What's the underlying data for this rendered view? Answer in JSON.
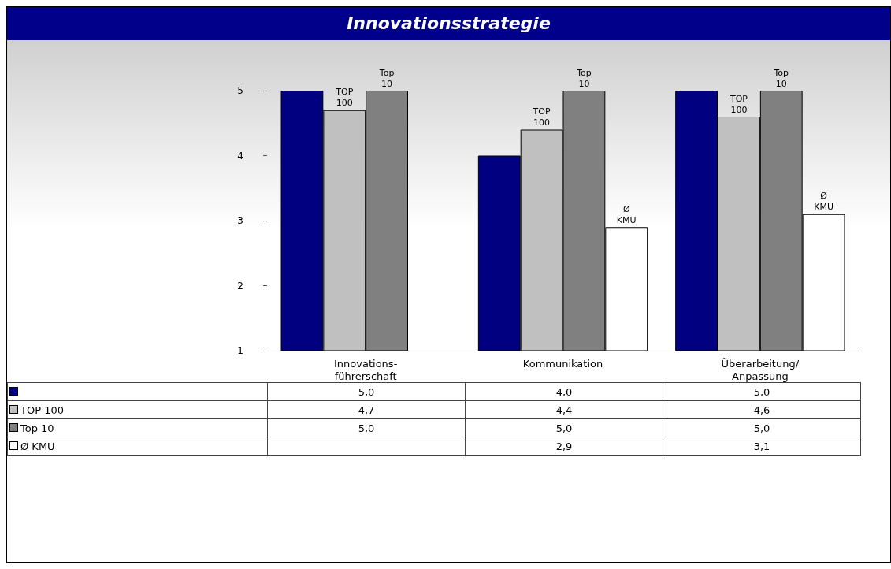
{
  "chart_data": {
    "type": "bar",
    "title": "Innovationsstrategie",
    "categories": [
      "Innovations-\nführerschaft",
      "Kommunikation",
      "Überarbeitung/\nAnpassung"
    ],
    "series": [
      {
        "color": "#000080",
        "values": [
          5.0,
          4.0,
          5.0
        ],
        "value_labels": [
          "5,0",
          "4,0",
          "5,0"
        ]
      },
      {
        "name": "TOP 100",
        "color": "#c0c0c0",
        "values": [
          4.7,
          4.4,
          4.6
        ],
        "value_labels": [
          "4,7",
          "4,4",
          "4,6"
        ]
      },
      {
        "name": "Top 10",
        "color": "#808080",
        "values": [
          5.0,
          5.0,
          5.0
        ],
        "value_labels": [
          "5,0",
          "5,0",
          "5,0"
        ]
      },
      {
        "name": "Ø KMU",
        "color": "#ffffff",
        "values": [
          null,
          2.9,
          3.1
        ],
        "value_labels": [
          null,
          "2,9",
          "3,1"
        ]
      }
    ],
    "ylim": [
      1,
      5
    ],
    "yticks": [
      1,
      2,
      3,
      4,
      5
    ],
    "grid": false,
    "legend": "bottom"
  }
}
